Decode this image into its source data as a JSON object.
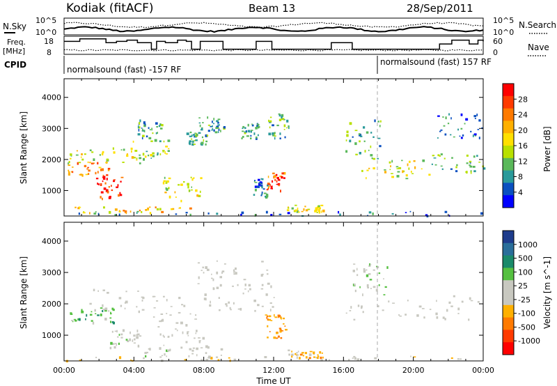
{
  "header": {
    "station": "Kodiak (fitACF)",
    "beam": "Beam 13",
    "date": "28/Sep/2011"
  },
  "top_panels": {
    "nsky_label": "N.Sky",
    "nsearch_label": "N.Search",
    "freq_label_line1": "Freq.",
    "freq_label_line2": "[MHz]",
    "nave_label": "Nave",
    "cpid_label": "CPID",
    "nsky_ticks": [
      "10^5",
      "10^0"
    ],
    "nsearch_ticks": [
      "10^5",
      "10^0"
    ],
    "freq_ticks": [
      "18",
      "8"
    ],
    "nave_ticks": [
      "60",
      "0"
    ],
    "cpid_segments": [
      {
        "text": "normalsound (fast) -157 RF"
      },
      {
        "text": "normalsound (fast) 157 RF"
      }
    ],
    "freq_profile": {
      "hours": [
        0,
        0.1,
        0.9,
        1.5,
        2.4,
        3.0,
        3.6,
        4.2,
        5.0,
        5.3,
        5.8,
        6.5,
        7.0,
        7.3,
        7.8,
        8.4,
        9.1,
        10.3,
        11.0,
        11.9,
        12.4,
        13.1,
        13.8,
        15.0,
        15.3,
        16.5,
        17.4,
        18.0,
        19.0,
        21.0,
        21.5,
        22.2,
        22.9,
        23.2,
        23.7,
        24.0
      ],
      "mhz": [
        16,
        16,
        18,
        18,
        15,
        16,
        17,
        15,
        10,
        16,
        15,
        17,
        16,
        10,
        16,
        16,
        10,
        10,
        16,
        10,
        10,
        10,
        10,
        10,
        15,
        10,
        10,
        10,
        10,
        10,
        14,
        17,
        17,
        14,
        17,
        16
      ]
    }
  },
  "colorbars": {
    "power": {
      "label": "Power [dB]",
      "ticks": [
        "28",
        "24",
        "20",
        "16",
        "12",
        "8",
        "4"
      ],
      "colors": [
        "#ff0000",
        "#ff3a00",
        "#ff7a00",
        "#ffb000",
        "#ffe000",
        "#b8e000",
        "#5ab85a",
        "#2a9a9a",
        "#0a50c0",
        "#0000ff"
      ]
    },
    "velocity": {
      "label": "Velocity [m s^-1]",
      "ticks": [
        "1000",
        "500",
        "100",
        "25",
        "-25",
        "-100",
        "-500",
        "-1000"
      ],
      "colors": [
        "#1e3c8c",
        "#2a6e9a",
        "#1a8a6a",
        "#55c040",
        "#c8c8c0",
        "#c8c8c0",
        "#ffb000",
        "#ff7a00",
        "#ff3a00",
        "#ff0000"
      ]
    }
  },
  "panels": {
    "ylabel": "Slant Range [km]",
    "yticks": [
      1000,
      2000,
      3000,
      4000
    ],
    "xlabel": "Time UT",
    "xticks": [
      "00:00",
      "04:00",
      "08:00",
      "12:00",
      "16:00",
      "20:00",
      "00:00"
    ]
  },
  "chart_data": {
    "type": "heatmap",
    "title": "Kodiak (fitACF)   Beam 13   28/Sep/2011",
    "xlabel": "Time UT",
    "ylabel": "Slant Range [km]",
    "xlim_hours": [
      0,
      24
    ],
    "ylim_km": [
      180,
      4600
    ],
    "power_scale_db": [
      0,
      30
    ],
    "velocity_scale_ms": [
      -1000,
      1000
    ],
    "power_clusters": [
      {
        "t0": 0.2,
        "t1": 2.6,
        "r0": 1500,
        "r1": 1950,
        "p": 22
      },
      {
        "t0": 1.8,
        "t1": 3.3,
        "r0": 700,
        "r1": 1500,
        "p": 26
      },
      {
        "t0": 0.2,
        "t1": 4.8,
        "r0": 1900,
        "r1": 2400,
        "p": 14
      },
      {
        "t0": 0.3,
        "t1": 7.2,
        "r0": 300,
        "r1": 500,
        "p": 18
      },
      {
        "t0": 3.5,
        "t1": 6.2,
        "r0": 2000,
        "r1": 2700,
        "p": 13
      },
      {
        "t0": 4.2,
        "t1": 5.6,
        "r0": 2700,
        "r1": 3300,
        "p": 8
      },
      {
        "t0": 5.6,
        "t1": 7.8,
        "r0": 700,
        "r1": 1600,
        "p": 14
      },
      {
        "t0": 7.0,
        "t1": 8.2,
        "r0": 2500,
        "r1": 2900,
        "p": 10
      },
      {
        "t0": 7.7,
        "t1": 9.2,
        "r0": 2900,
        "r1": 3400,
        "p": 8
      },
      {
        "t0": 10.1,
        "t1": 11.1,
        "r0": 2700,
        "r1": 3200,
        "p": 8
      },
      {
        "t0": 10.8,
        "t1": 11.7,
        "r0": 800,
        "r1": 1400,
        "p": 7
      },
      {
        "t0": 11.6,
        "t1": 12.9,
        "r0": 2700,
        "r1": 3500,
        "p": 9
      },
      {
        "t0": 11.5,
        "t1": 12.6,
        "r0": 1000,
        "r1": 1600,
        "p": 25
      },
      {
        "t0": 12.6,
        "t1": 14.8,
        "r0": 300,
        "r1": 550,
        "p": 16
      },
      {
        "t0": 16.1,
        "t1": 18.2,
        "r0": 2000,
        "r1": 3300,
        "p": 10
      },
      {
        "t0": 17.0,
        "t1": 21.0,
        "r0": 1400,
        "r1": 2000,
        "p": 15
      },
      {
        "t0": 21.0,
        "t1": 24.0,
        "r0": 1600,
        "r1": 2200,
        "p": 9
      },
      {
        "t0": 21.2,
        "t1": 24.0,
        "r0": 2700,
        "r1": 3500,
        "p": 6
      },
      {
        "t0": 0.0,
        "t1": 24.0,
        "r0": 200,
        "r1": 350,
        "p": 6
      }
    ],
    "velocity_clusters": [
      {
        "t0": 0.2,
        "t1": 2.8,
        "r0": 1400,
        "r1": 1900,
        "v": 300
      },
      {
        "t0": 2.5,
        "t1": 4.5,
        "r0": 600,
        "r1": 1200,
        "v": 80
      },
      {
        "t0": 1.0,
        "t1": 7.0,
        "r0": 1700,
        "r1": 2500,
        "v": 0
      },
      {
        "t0": 4.5,
        "t1": 9.0,
        "r0": 300,
        "r1": 700,
        "v": 60
      },
      {
        "t0": 5.0,
        "t1": 8.0,
        "r0": 800,
        "r1": 1700,
        "v": 0
      },
      {
        "t0": 8.0,
        "t1": 12.0,
        "r0": 1800,
        "r1": 2600,
        "v": 0
      },
      {
        "t0": 7.5,
        "t1": 12.5,
        "r0": 2600,
        "r1": 3400,
        "v": 0
      },
      {
        "t0": 11.5,
        "t1": 12.7,
        "r0": 900,
        "r1": 1700,
        "v": -400
      },
      {
        "t0": 12.8,
        "t1": 14.8,
        "r0": 300,
        "r1": 550,
        "v": -300
      },
      {
        "t0": 16.1,
        "t1": 24.0,
        "r0": 1500,
        "r1": 2300,
        "v": 0
      },
      {
        "t0": 16.5,
        "t1": 18.5,
        "r0": 2300,
        "r1": 3300,
        "v": 150
      },
      {
        "t0": 0.0,
        "t1": 24.0,
        "r0": 200,
        "r1": 350,
        "v": -150
      }
    ]
  }
}
